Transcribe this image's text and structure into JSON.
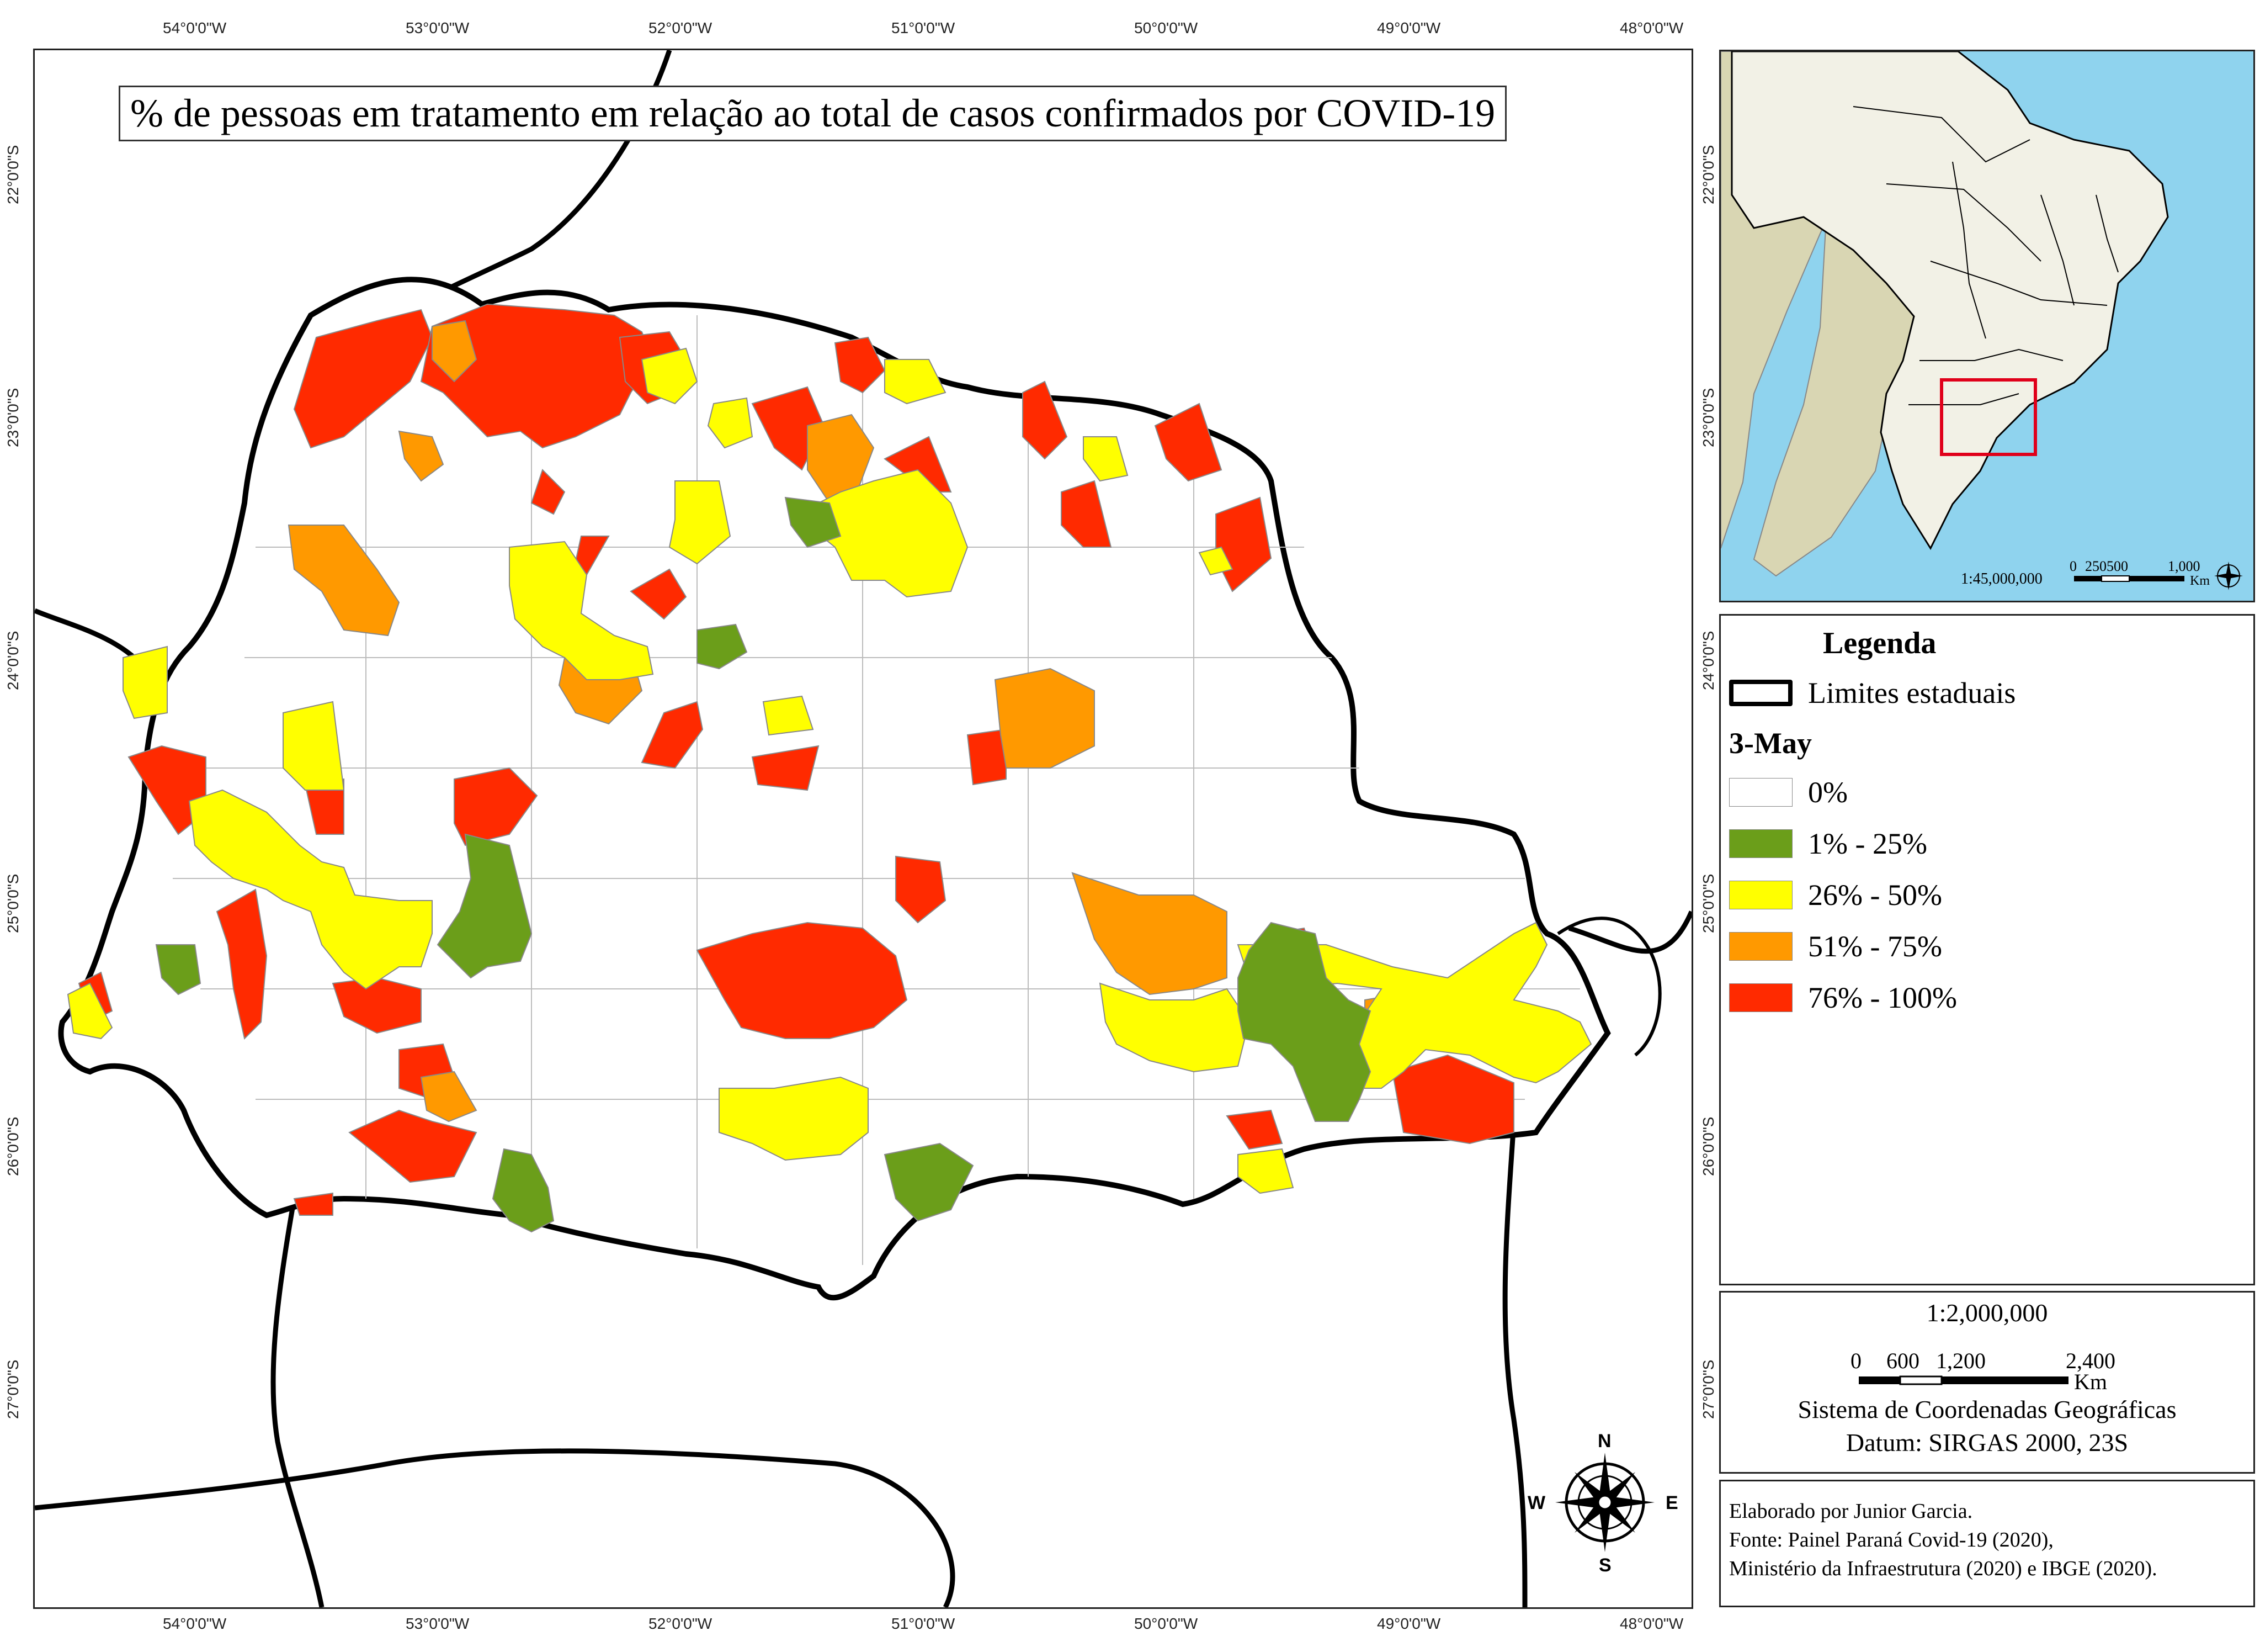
{
  "map": {
    "title": "% de pessoas em tratamento em relação ao total de casos confirmados por COVID-19",
    "lon_ticks": [
      "54°0'0\"W",
      "53°0'0\"W",
      "52°0'0\"W",
      "51°0'0\"W",
      "50°0'0\"W",
      "49°0'0\"W",
      "48°0'0\"W"
    ],
    "lat_ticks": [
      "22°0'0\"S",
      "23°0'0\"S",
      "24°0'0\"S",
      "25°0'0\"S",
      "26°0'0\"S",
      "27°0'0\"S"
    ],
    "compass": {
      "n": "N",
      "s": "S",
      "e": "E",
      "w": "W"
    },
    "colors": {
      "zero": "#ffffff",
      "c1_25": "#6b9e1a",
      "c26_50": "#ffff00",
      "c51_75": "#ff9900",
      "c76_100": "#ff2a00",
      "border": "#000000",
      "inset_ocean": "#8fd3ee",
      "inset_brazil": "#f2f1e6",
      "inset_sa": "#d9d6b3",
      "highlight": "#e0001a"
    }
  },
  "inset": {
    "scale_label": "1:45,000,000",
    "scale_ticks": [
      "0",
      "250500",
      "1,000"
    ],
    "unit": "Km"
  },
  "legend": {
    "title": "Legenda",
    "state_limits": "Limites estaduais",
    "date": "3-May",
    "classes": [
      {
        "label": "0%",
        "color": "#ffffff"
      },
      {
        "label": "1% - 25%",
        "color": "#6b9e1a"
      },
      {
        "label": "26% - 50%",
        "color": "#ffff00"
      },
      {
        "label": "51% - 75%",
        "color": "#ff9900"
      },
      {
        "label": "76% - 100%",
        "color": "#ff2a00"
      }
    ]
  },
  "scale": {
    "ratio": "1:2,000,000",
    "ticks": [
      "0",
      "600",
      "1,200",
      "2,400"
    ],
    "unit": "Km",
    "system": "Sistema de Coordenadas Geográficas",
    "datum": "Datum: SIRGAS 2000, 23S"
  },
  "credits": {
    "line1": "Elaborado por Junior Garcia.",
    "line2": "Fonte: Painel Paraná Covid-19 (2020),",
    "line3": "Ministério da Infraestrutura (2020) e IBGE (2020)."
  }
}
